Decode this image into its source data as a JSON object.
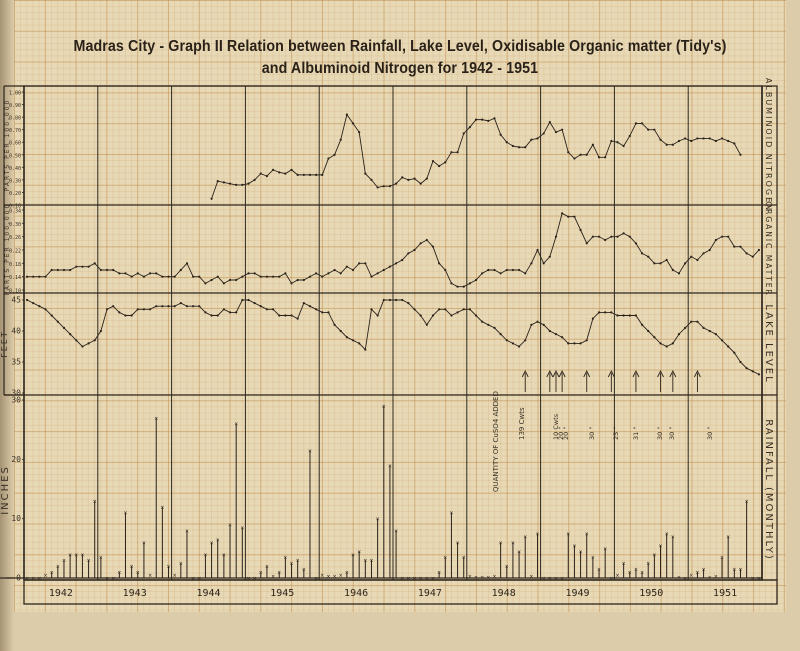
{
  "title": {
    "line1": "Madras City - Graph II Relation between Rainfall, Lake Level, Oxidisable Organic matter (Tidy's)",
    "line2": "and Albuminoid Nitrogen for 1942 - 1951"
  },
  "years": [
    "1942",
    "1943",
    "1944",
    "1945",
    "1946",
    "1947",
    "1948",
    "1949",
    "1950",
    "1951"
  ],
  "panels": {
    "albuminoid": {
      "side_label": "ALBUMINOID NITROGEN",
      "unit_label": "PARTS PER 100,000",
      "ticks": [
        "1.00",
        "0.90",
        "0.80",
        "0.70",
        "0.60",
        "0.50",
        "0.40",
        "0.30",
        "0.20",
        "0.10"
      ]
    },
    "organic": {
      "side_label": "ORGANIC MATTER",
      "unit_label": "PARTS PER 100,000",
      "ticks": [
        "0.34",
        "0.30",
        "0.26",
        "0.22",
        "0.18",
        "0.14",
        "0.10"
      ]
    },
    "lake": {
      "side_label": "LAKE LEVEL",
      "unit_label": "FEET",
      "ticks": [
        "45",
        "40",
        "35",
        "30"
      ]
    },
    "rainfall": {
      "side_label": "RAINFALL (MONTHLY)",
      "unit_label": "INCHES",
      "ticks": [
        "30",
        "20",
        "10",
        "0"
      ]
    }
  },
  "annotations": {
    "quantity_label": "QUANTITY OF CuSO4 ADDED",
    "first_dose": "139 Cwts",
    "doses": [
      "10 Cwts",
      "20 \"",
      "20 \"",
      "30 \"",
      "25 \"",
      "31 \"",
      "30 \"",
      "30 \"",
      "30 \""
    ]
  },
  "chart_data": {
    "type": "line",
    "title": "Madras City - Graph II Relation between Rainfall, Lake Level, Oxidisable Organic matter (Tidy's) and Albuminoid Nitrogen for 1942 - 1951",
    "x": "monthly, Jan 1942 - Dec 1951 (120 months)",
    "categories": [
      "1942",
      "1943",
      "1944",
      "1945",
      "1946",
      "1947",
      "1948",
      "1949",
      "1950",
      "1951"
    ],
    "legend": "none (panels labelled on right margin)",
    "grid": true,
    "series": [
      {
        "name": "Albuminoid Nitrogen",
        "type": "line",
        "ylabel": "Parts per 100,000",
        "ylim": [
          0.1,
          1.0
        ],
        "start_month_index": 30,
        "values": [
          0.15,
          0.29,
          0.28,
          0.27,
          0.26,
          0.26,
          0.27,
          0.3,
          0.35,
          0.33,
          0.38,
          0.36,
          0.35,
          0.38,
          0.34,
          0.34,
          0.34,
          0.34,
          0.34,
          0.47,
          0.5,
          0.62,
          0.82,
          0.75,
          0.68,
          0.35,
          0.3,
          0.24,
          0.25,
          0.25,
          0.27,
          0.32,
          0.3,
          0.31,
          0.27,
          0.31,
          0.45,
          0.41,
          0.44,
          0.52,
          0.52,
          0.67,
          0.72,
          0.78,
          0.78,
          0.77,
          0.79,
          0.66,
          0.6,
          0.57,
          0.56,
          0.56,
          0.62,
          0.63,
          0.67,
          0.76,
          0.68,
          0.7,
          0.52,
          0.47,
          0.5,
          0.5,
          0.58,
          0.48,
          0.48,
          0.61,
          0.6,
          0.57,
          0.65,
          0.75,
          0.75,
          0.7,
          0.7,
          0.62,
          0.58,
          0.58,
          0.61,
          0.63,
          0.61,
          0.63,
          0.63,
          0.63,
          0.61,
          0.63,
          0.61,
          0.59,
          0.5
        ]
      },
      {
        "name": "Oxidisable Organic Matter (Tidy's)",
        "type": "line",
        "ylabel": "Parts per 100,000",
        "ylim": [
          0.1,
          0.34
        ],
        "values": [
          0.14,
          0.14,
          0.14,
          0.14,
          0.16,
          0.16,
          0.16,
          0.16,
          0.17,
          0.17,
          0.17,
          0.18,
          0.16,
          0.16,
          0.16,
          0.15,
          0.15,
          0.14,
          0.15,
          0.14,
          0.15,
          0.15,
          0.14,
          0.14,
          0.14,
          0.16,
          0.18,
          0.14,
          0.14,
          0.12,
          0.13,
          0.14,
          0.12,
          0.13,
          0.13,
          0.14,
          0.15,
          0.15,
          0.14,
          0.14,
          0.14,
          0.14,
          0.15,
          0.12,
          0.13,
          0.13,
          0.14,
          0.15,
          0.14,
          0.15,
          0.16,
          0.15,
          0.17,
          0.16,
          0.18,
          0.18,
          0.14,
          0.15,
          0.16,
          0.17,
          0.18,
          0.19,
          0.21,
          0.22,
          0.24,
          0.25,
          0.23,
          0.18,
          0.16,
          0.12,
          0.11,
          0.11,
          0.12,
          0.13,
          0.15,
          0.16,
          0.16,
          0.15,
          0.16,
          0.16,
          0.16,
          0.15,
          0.18,
          0.22,
          0.18,
          0.2,
          0.26,
          0.33,
          0.32,
          0.32,
          0.28,
          0.24,
          0.26,
          0.26,
          0.25,
          0.26,
          0.26,
          0.27,
          0.26,
          0.24,
          0.21,
          0.2,
          0.18,
          0.18,
          0.19,
          0.16,
          0.15,
          0.18,
          0.2,
          0.19,
          0.21,
          0.22,
          0.25,
          0.26,
          0.26,
          0.23,
          0.23,
          0.21,
          0.2,
          0.22
        ]
      },
      {
        "name": "Lake Level",
        "type": "line",
        "ylabel": "Feet",
        "ylim": [
          30,
          45
        ],
        "values": [
          45.0,
          44.5,
          44.0,
          43.5,
          42.5,
          41.5,
          40.5,
          39.5,
          38.5,
          37.5,
          38.0,
          38.5,
          40.0,
          43.5,
          44.0,
          43.0,
          42.5,
          42.5,
          43.5,
          43.5,
          43.5,
          44.0,
          44.0,
          44.0,
          44.0,
          44.5,
          44.0,
          44.0,
          44.0,
          43.0,
          42.5,
          42.5,
          43.5,
          43.0,
          43.0,
          45.0,
          45.0,
          44.5,
          44.0,
          43.5,
          43.5,
          42.5,
          42.5,
          42.5,
          42.0,
          44.5,
          44.0,
          43.5,
          43.0,
          43.0,
          41.0,
          40.0,
          39.0,
          38.5,
          38.0,
          37.0,
          43.5,
          42.5,
          45.0,
          45.0,
          45.0,
          45.0,
          44.5,
          43.5,
          42.5,
          41.0,
          42.5,
          43.5,
          43.5,
          42.5,
          43.0,
          43.5,
          43.5,
          42.5,
          41.5,
          41.0,
          40.5,
          39.5,
          38.5,
          38.0,
          37.5,
          38.5,
          41.0,
          41.5,
          41.0,
          40.0,
          39.5,
          39.0,
          38.0,
          38.0,
          38.0,
          38.5,
          42.0,
          43.0,
          43.0,
          43.0,
          42.5,
          42.5,
          42.5,
          42.5,
          41.0,
          40.0,
          39.0,
          38.0,
          37.5,
          38.0,
          39.5,
          40.5,
          41.5,
          41.5,
          40.5,
          40.0,
          39.5,
          38.5,
          37.5,
          36.5,
          35.0,
          34.0,
          33.5,
          33.0
        ]
      },
      {
        "name": "Rainfall (Monthly)",
        "type": "bar",
        "ylabel": "Inches",
        "ylim": [
          0,
          30
        ],
        "values": [
          0.0,
          0.0,
          0.0,
          0.5,
          1.0,
          2.0,
          3.0,
          4.0,
          4.0,
          4.0,
          3.0,
          13.0,
          3.5,
          0.0,
          0.0,
          1.0,
          11.0,
          2.0,
          1.0,
          6.0,
          0.5,
          27.0,
          12.0,
          2.0,
          0.5,
          2.5,
          8.0,
          0.0,
          0.0,
          4.0,
          6.0,
          6.5,
          4.0,
          9.0,
          26.0,
          8.5,
          0.0,
          0.0,
          1.0,
          2.0,
          0.3,
          1.0,
          3.5,
          2.5,
          3.0,
          1.5,
          21.5,
          0.0,
          0.5,
          0.3,
          0.3,
          0.5,
          1.0,
          4.0,
          4.5,
          3.0,
          3.0,
          10.0,
          29.0,
          19.0,
          8.0,
          0.0,
          0.0,
          0.0,
          0.0,
          0.0,
          0.0,
          1.0,
          3.5,
          11.0,
          6.0,
          3.5,
          0.3,
          0.2,
          0.2,
          0.2,
          0.3,
          6.0,
          2.0,
          6.0,
          4.5,
          7.0,
          0.3,
          7.5,
          0.0,
          0.0,
          0.0,
          0.0,
          7.5,
          5.5,
          4.5,
          7.5,
          3.5,
          1.5,
          5.0,
          0.0,
          0.5,
          2.5,
          1.0,
          1.5,
          1.0,
          2.5,
          4.0,
          5.5,
          7.5,
          7.0,
          0.2,
          0.0,
          0.5,
          1.0,
          1.5,
          0.2,
          0.3,
          3.5,
          7.0,
          1.5,
          1.5,
          13.0,
          0.0,
          0.0
        ]
      }
    ],
    "cuso4_dosing_markers_month_index": [
      81,
      85,
      86,
      87,
      91,
      95,
      99,
      103,
      105,
      109
    ],
    "annotations": [
      "QUANTITY OF CuSO4 ADDED",
      "139 Cwts",
      "10 Cwts",
      "20",
      "20",
      "30",
      "25",
      "31",
      "30",
      "30",
      "30"
    ]
  }
}
